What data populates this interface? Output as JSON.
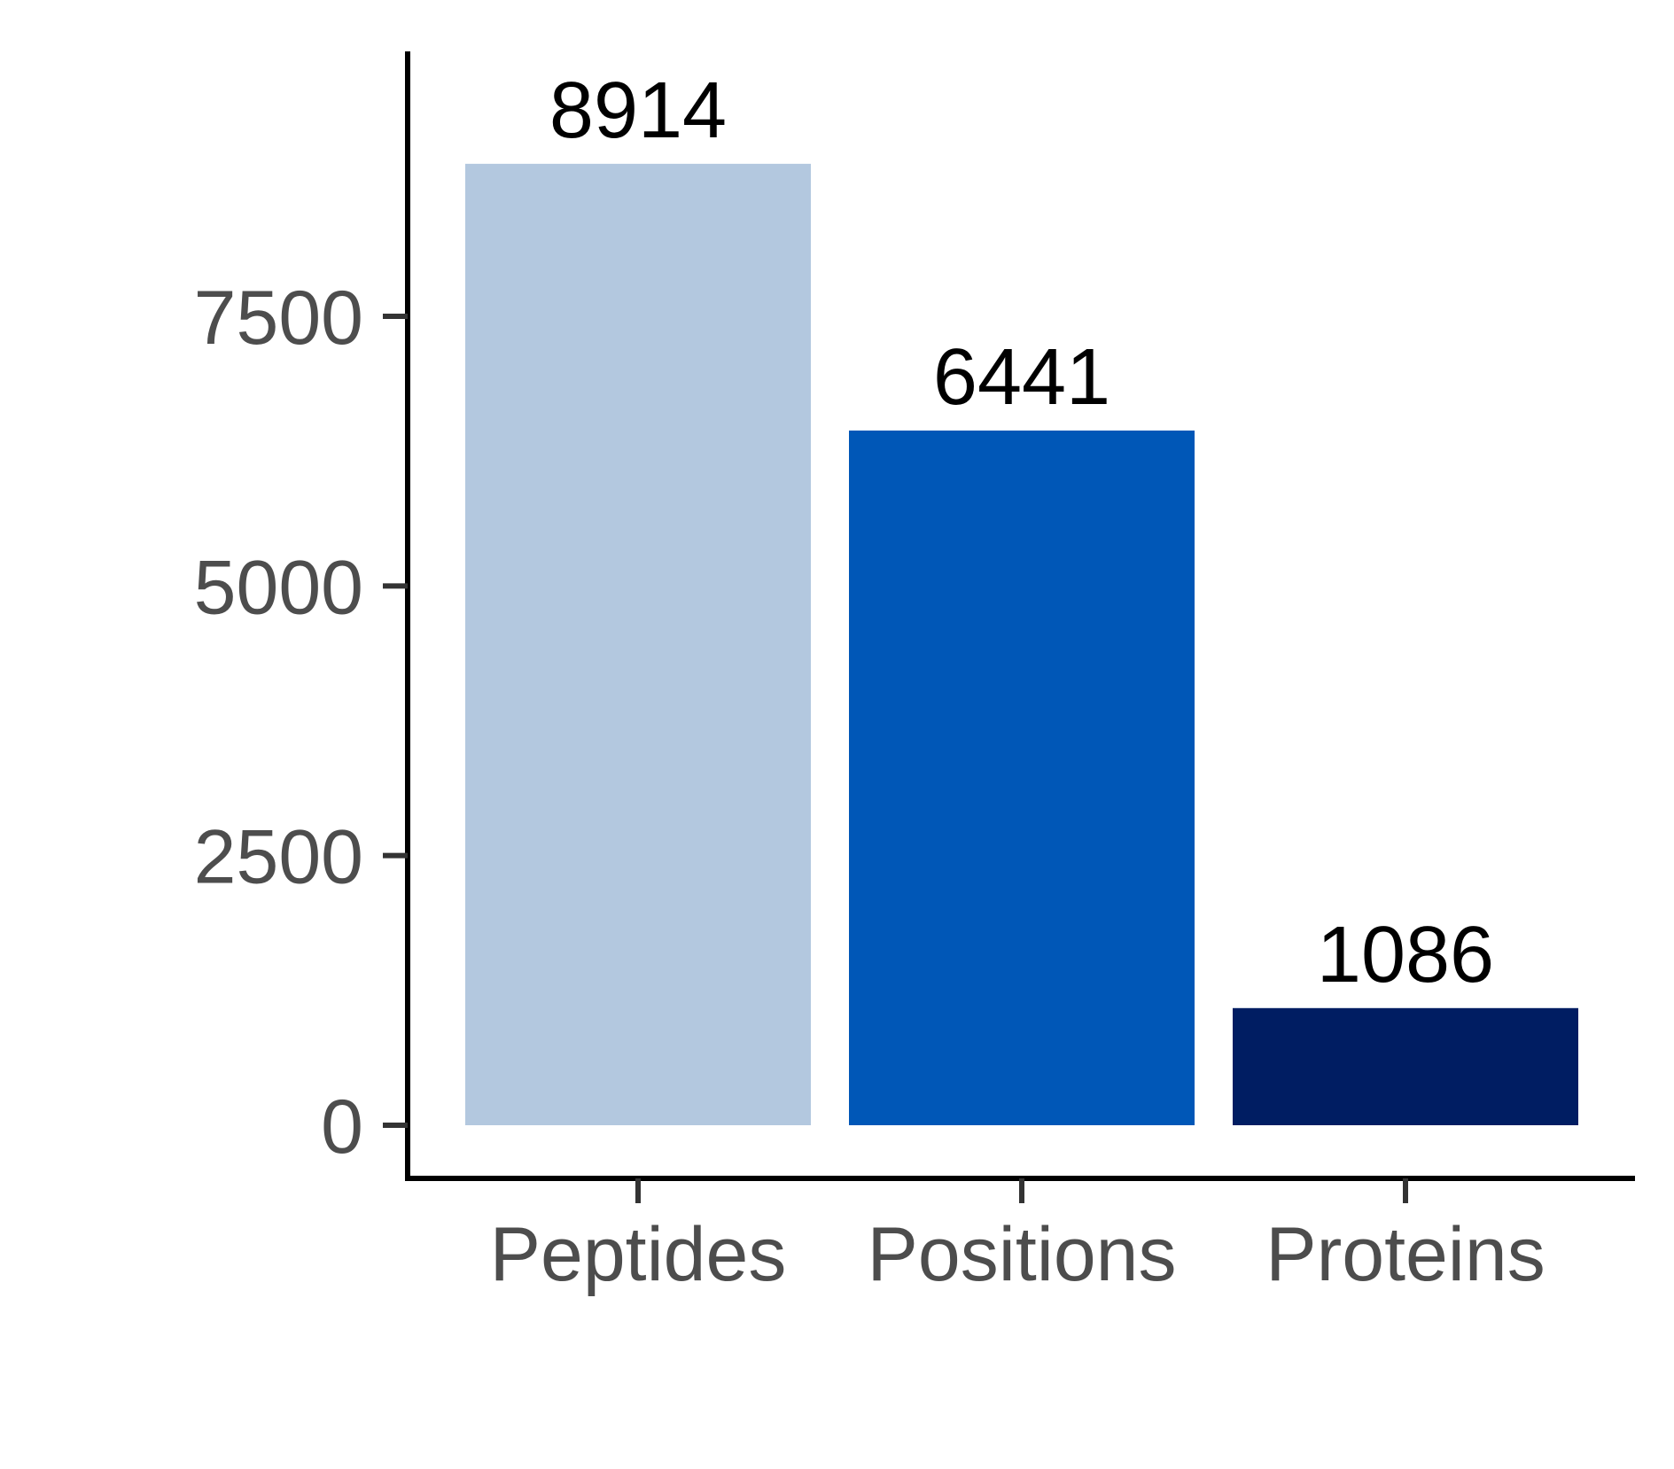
{
  "chart_data": {
    "type": "bar",
    "categories": [
      "Peptides",
      "Positions",
      "Proteins"
    ],
    "values": [
      8914,
      6441,
      1086
    ],
    "data_labels": [
      "8914",
      "6441",
      "1086"
    ],
    "colors": [
      "#b3c8df",
      "#0057b7",
      "#001d62"
    ],
    "title": "",
    "xlabel": "",
    "ylabel": "",
    "ylim": [
      -450,
      10000
    ],
    "yticks": [
      0,
      2500,
      5000,
      7500
    ],
    "ytick_labels": [
      "0",
      "2500",
      "5000",
      "7500"
    ],
    "grid": false,
    "legend": "none"
  }
}
